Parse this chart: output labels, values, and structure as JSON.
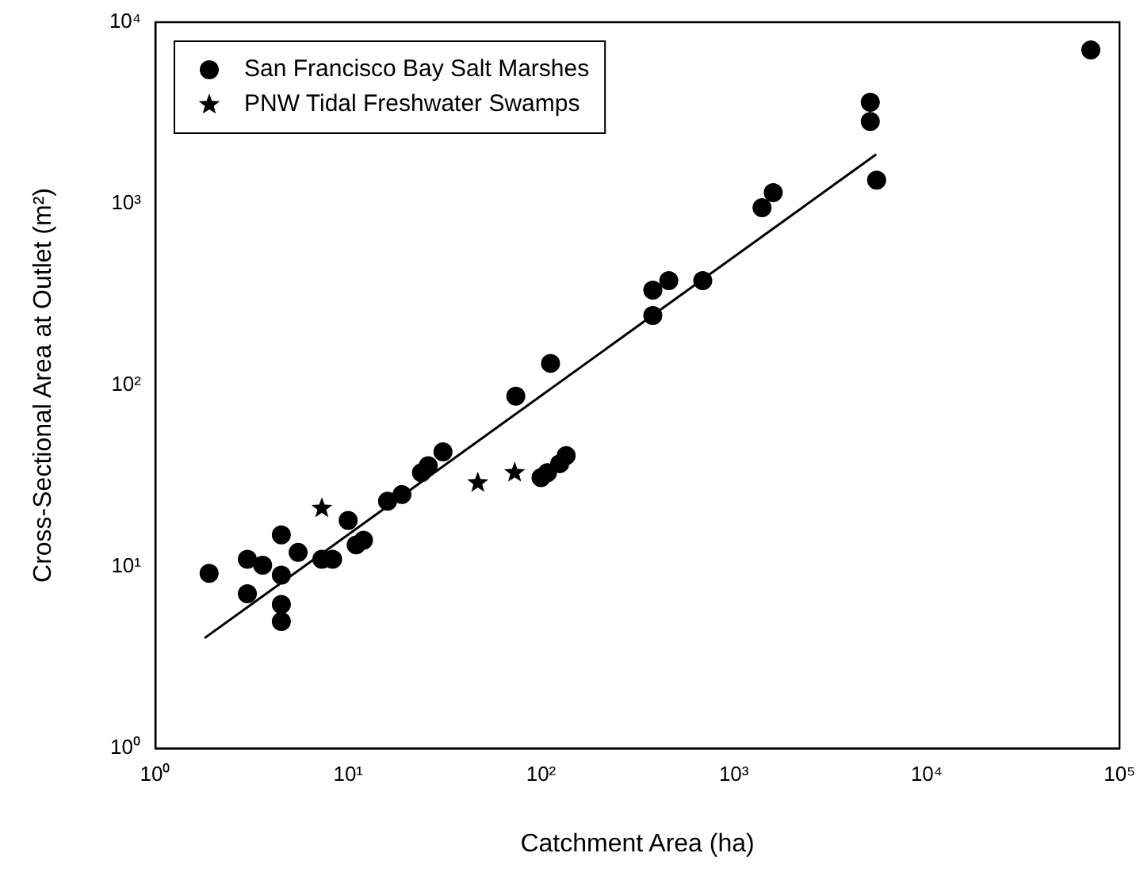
{
  "chart_data": {
    "type": "scatter",
    "xlabel": "Catchment Area (ha)",
    "ylabel": "Cross-Sectional Area at Outlet (m²)",
    "log": "xy",
    "grid": false,
    "legend": "top left",
    "xlim": [
      1,
      100000
    ],
    "ylim": [
      1,
      10000
    ],
    "xticks": [
      {
        "value": 1,
        "label": "10⁰"
      },
      {
        "value": 10,
        "label": "10¹"
      },
      {
        "value": 100,
        "label": "10²"
      },
      {
        "value": 1000,
        "label": "10³"
      },
      {
        "value": 10000,
        "label": "10⁴"
      },
      {
        "value": 100000,
        "label": "10⁵"
      }
    ],
    "yticks": [
      {
        "value": 1,
        "label": "10⁰"
      },
      {
        "value": 10,
        "label": "10¹"
      },
      {
        "value": 100,
        "label": "10²"
      },
      {
        "value": 1000,
        "label": "10³"
      },
      {
        "value": 10000,
        "label": "10⁴"
      }
    ],
    "series": [
      {
        "name": "San Francisco Bay Salt Marshes",
        "color": "#000000",
        "marker": "circle",
        "x": [
          1.9,
          3,
          3,
          3.6,
          4.5,
          4.5,
          4.5,
          4.5,
          5.5,
          7.3,
          8.3,
          10,
          11,
          12,
          16,
          19,
          24,
          26,
          31,
          74,
          112,
          100,
          108,
          125,
          135,
          380,
          380,
          460,
          690,
          1400,
          1600,
          5100,
          5100,
          5500,
          71000
        ],
        "values": [
          9.2,
          11,
          7.1,
          10.2,
          15,
          9,
          6.2,
          5,
          12,
          11,
          11,
          18,
          13.2,
          14,
          23,
          25,
          33,
          36,
          43,
          87,
          132,
          31,
          33,
          37,
          41,
          334,
          242,
          377,
          377,
          950,
          1150,
          3620,
          2840,
          1350,
          7030
        ]
      },
      {
        "name": "PNW Tidal Freshwater Swamps",
        "color": "#000000",
        "marker": "star",
        "x": [
          7.3,
          47,
          73
        ],
        "values": [
          21,
          29,
          33
        ]
      },
      {
        "type": "line",
        "color": "#000000",
        "marker": "none",
        "line_style": "solid",
        "x": [
          1.8,
          5470
        ],
        "values": [
          4.05,
          1870
        ]
      }
    ]
  }
}
